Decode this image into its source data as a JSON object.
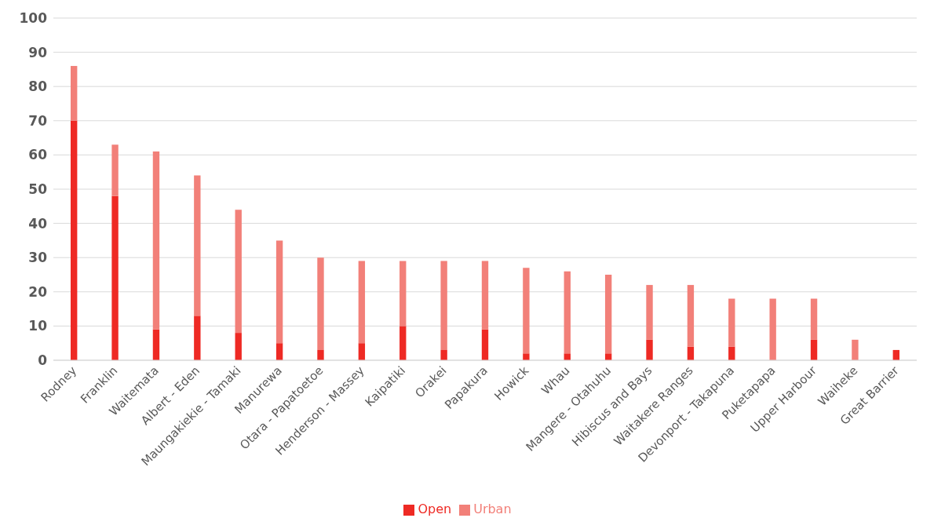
{
  "chart_data": {
    "type": "bar",
    "stacked": true,
    "categories": [
      "Rodney",
      "Franklin",
      "Waitemata",
      "Albert - Eden",
      "Maungakiekie - Tamaki",
      "Manurewa",
      "Otara - Papatoetoe",
      "Henderson - Massey",
      "Kaipatiki",
      "Orakei",
      "Papakura",
      "Howick",
      "Whau",
      "Mangere - Otahuhu",
      "Hibiscus and Bays",
      "Waitakere Ranges",
      "Devonport - Takapuna",
      "Puketapapa",
      "Upper Harbour",
      "Waiheke",
      "Great Barrier"
    ],
    "series": [
      {
        "name": "Open",
        "color": "#ee2a24",
        "values": [
          70,
          48,
          9,
          13,
          8,
          5,
          3,
          5,
          10,
          3,
          9,
          2,
          2,
          2,
          6,
          4,
          4,
          0,
          6,
          0,
          3
        ]
      },
      {
        "name": "Urban",
        "color": "#f28079",
        "values": [
          16,
          15,
          52,
          41,
          36,
          30,
          27,
          24,
          19,
          26,
          20,
          25,
          24,
          23,
          16,
          18,
          14,
          18,
          12,
          6,
          0
        ]
      }
    ],
    "ylim": [
      0,
      100
    ],
    "yticks": [
      0,
      10,
      20,
      30,
      40,
      50,
      60,
      70,
      80,
      90,
      100
    ],
    "grid": "y",
    "legend": "bottom"
  }
}
